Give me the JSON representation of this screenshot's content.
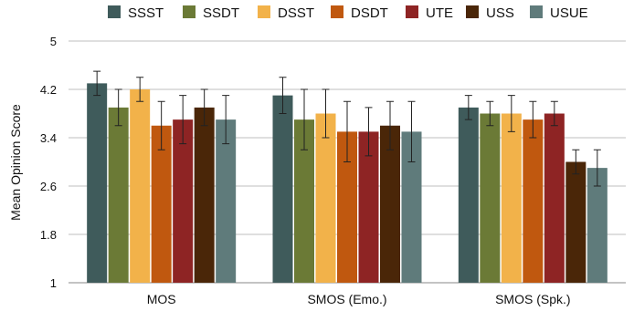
{
  "chart_data": {
    "type": "bar",
    "title": "",
    "xlabel": "",
    "ylabel": "Mean Opinion Score",
    "ylim": [
      1,
      5
    ],
    "yticks": [
      "1",
      "1.8",
      "2.6",
      "3.4",
      "4.2",
      "5"
    ],
    "grid": true,
    "legend_position": "top",
    "categories": [
      "MOS",
      "SMOS (Emo.)",
      "SMOS (Spk.)"
    ],
    "series": [
      {
        "name": "SSST",
        "color": "#3f5b5b",
        "values": [
          4.3,
          4.1,
          3.9
        ],
        "errors": [
          0.2,
          0.3,
          0.2
        ]
      },
      {
        "name": "SSDT",
        "color": "#6b7a36",
        "values": [
          3.9,
          3.7,
          3.8
        ],
        "errors": [
          0.3,
          0.5,
          0.2
        ]
      },
      {
        "name": "DSST",
        "color": "#f2b24a",
        "values": [
          4.2,
          3.8,
          3.8
        ],
        "errors": [
          0.2,
          0.4,
          0.3
        ]
      },
      {
        "name": "DSDT",
        "color": "#c0580f",
        "values": [
          3.6,
          3.5,
          3.7
        ],
        "errors": [
          0.4,
          0.5,
          0.3
        ]
      },
      {
        "name": "UTE",
        "color": "#8e2424",
        "values": [
          3.7,
          3.5,
          3.8
        ],
        "errors": [
          0.4,
          0.4,
          0.2
        ]
      },
      {
        "name": "USS",
        "color": "#4a2608",
        "values": [
          3.9,
          3.6,
          3.0
        ],
        "errors": [
          0.3,
          0.4,
          0.2
        ]
      },
      {
        "name": "USUE",
        "color": "#5f7b7b",
        "values": [
          3.7,
          3.5,
          2.9
        ],
        "errors": [
          0.4,
          0.5,
          0.3
        ]
      }
    ]
  }
}
